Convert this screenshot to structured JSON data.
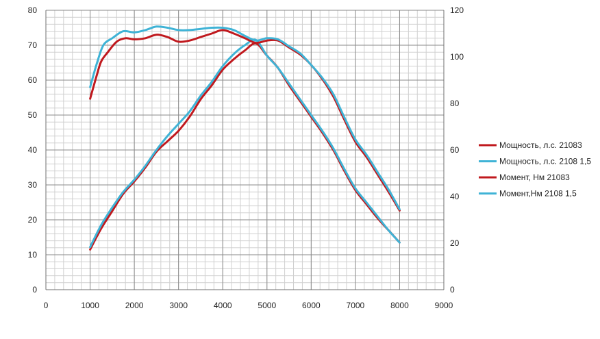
{
  "chart_data": {
    "type": "line",
    "grid": true,
    "legend_position": "right",
    "x": {
      "range": [
        0,
        9000
      ],
      "ticks": [
        0,
        1000,
        2000,
        3000,
        4000,
        5000,
        6000,
        7000,
        8000,
        9000
      ],
      "tick_labels": [
        "0",
        "1000",
        "2000",
        "3000",
        "4000",
        "5000",
        "6000",
        "7000",
        "8000",
        "9000"
      ]
    },
    "y_left": {
      "range": [
        0,
        80
      ],
      "ticks": [
        0,
        10,
        20,
        30,
        40,
        50,
        60,
        70,
        80
      ],
      "tick_labels": [
        "0",
        "10",
        "20",
        "30",
        "40",
        "50",
        "60",
        "70",
        "80"
      ]
    },
    "y_right": {
      "range": [
        0,
        120
      ],
      "ticks": [
        0,
        20,
        40,
        60,
        80,
        100,
        120
      ],
      "tick_labels": [
        "0",
        "20",
        "40",
        "60",
        "80",
        "100",
        "120"
      ]
    },
    "series": [
      {
        "name": "Мощность, л.с. 21083",
        "color": "#c0191e",
        "axis": "left",
        "points": [
          [
            1000,
            11.5
          ],
          [
            1250,
            17.5
          ],
          [
            1500,
            22.5
          ],
          [
            1750,
            27.5
          ],
          [
            2000,
            31
          ],
          [
            2250,
            35
          ],
          [
            2500,
            39.5
          ],
          [
            2750,
            42.5
          ],
          [
            3000,
            45.5
          ],
          [
            3250,
            49.5
          ],
          [
            3500,
            54.5
          ],
          [
            3750,
            58.5
          ],
          [
            4000,
            63
          ],
          [
            4250,
            66
          ],
          [
            4500,
            68.5
          ],
          [
            4750,
            70.5
          ],
          [
            5000,
            67
          ],
          [
            5250,
            63.5
          ],
          [
            5500,
            58.5
          ],
          [
            5750,
            54
          ],
          [
            6000,
            49.5
          ],
          [
            6250,
            45
          ],
          [
            6500,
            40
          ],
          [
            6750,
            34
          ],
          [
            7000,
            28.5
          ],
          [
            7250,
            24.5
          ],
          [
            7500,
            20.5
          ],
          [
            7750,
            17
          ],
          [
            8000,
            13.5
          ]
        ]
      },
      {
        "name": "Мощность, л.с. 2108 1,5",
        "color": "#3fb3d6",
        "axis": "left",
        "points": [
          [
            1000,
            12.2
          ],
          [
            1250,
            18.5
          ],
          [
            1500,
            23.5
          ],
          [
            1750,
            28
          ],
          [
            2000,
            31.5
          ],
          [
            2250,
            35.5
          ],
          [
            2500,
            40
          ],
          [
            2750,
            44
          ],
          [
            3000,
            47.5
          ],
          [
            3250,
            51
          ],
          [
            3500,
            55.5
          ],
          [
            3750,
            59.5
          ],
          [
            4000,
            64
          ],
          [
            4250,
            67.5
          ],
          [
            4500,
            70
          ],
          [
            4750,
            71.5
          ],
          [
            5000,
            67
          ],
          [
            5250,
            63.5
          ],
          [
            5500,
            59
          ],
          [
            5750,
            54.5
          ],
          [
            6000,
            50
          ],
          [
            6250,
            45.5
          ],
          [
            6500,
            40.5
          ],
          [
            6750,
            34.5
          ],
          [
            7000,
            29
          ],
          [
            7250,
            25
          ],
          [
            7500,
            21
          ],
          [
            7750,
            17
          ],
          [
            8000,
            13.5
          ]
        ]
      },
      {
        "name": "Момент, Нм 21083",
        "color": "#c0191e",
        "axis": "right",
        "points": [
          [
            1000,
            82
          ],
          [
            1150,
            92
          ],
          [
            1250,
            98
          ],
          [
            1400,
            102
          ],
          [
            1600,
            106.5
          ],
          [
            1800,
            108
          ],
          [
            2000,
            107.5
          ],
          [
            2250,
            108
          ],
          [
            2500,
            109.5
          ],
          [
            2750,
            108.5
          ],
          [
            3000,
            106.5
          ],
          [
            3250,
            107
          ],
          [
            3500,
            108.5
          ],
          [
            3750,
            110
          ],
          [
            4000,
            111.5
          ],
          [
            4250,
            110
          ],
          [
            4500,
            108
          ],
          [
            4750,
            106
          ],
          [
            5000,
            107
          ],
          [
            5250,
            107
          ],
          [
            5500,
            104
          ],
          [
            5750,
            101
          ],
          [
            6000,
            96.5
          ],
          [
            6250,
            90.5
          ],
          [
            6500,
            83
          ],
          [
            6750,
            73
          ],
          [
            7000,
            63.5
          ],
          [
            7250,
            57
          ],
          [
            7500,
            49.5
          ],
          [
            7750,
            42
          ],
          [
            8000,
            34
          ]
        ]
      },
      {
        "name": "Момент,Нм 2108 1,5",
        "color": "#3fb3d6",
        "axis": "right",
        "points": [
          [
            1000,
            87
          ],
          [
            1150,
            97
          ],
          [
            1300,
            105
          ],
          [
            1500,
            108
          ],
          [
            1750,
            111
          ],
          [
            2000,
            110.5
          ],
          [
            2250,
            111.5
          ],
          [
            2500,
            113
          ],
          [
            2750,
            112.5
          ],
          [
            3000,
            111.5
          ],
          [
            3250,
            111.5
          ],
          [
            3500,
            112
          ],
          [
            3750,
            112.5
          ],
          [
            4000,
            112.5
          ],
          [
            4250,
            111.5
          ],
          [
            4500,
            109
          ],
          [
            4750,
            107
          ],
          [
            5000,
            108
          ],
          [
            5250,
            107.5
          ],
          [
            5500,
            104.5
          ],
          [
            5750,
            101.5
          ],
          [
            6000,
            96.5
          ],
          [
            6250,
            91
          ],
          [
            6500,
            84
          ],
          [
            6750,
            74
          ],
          [
            7000,
            64.5
          ],
          [
            7250,
            58
          ],
          [
            7500,
            50.5
          ],
          [
            7750,
            43
          ],
          [
            8000,
            34.5
          ]
        ]
      }
    ]
  }
}
